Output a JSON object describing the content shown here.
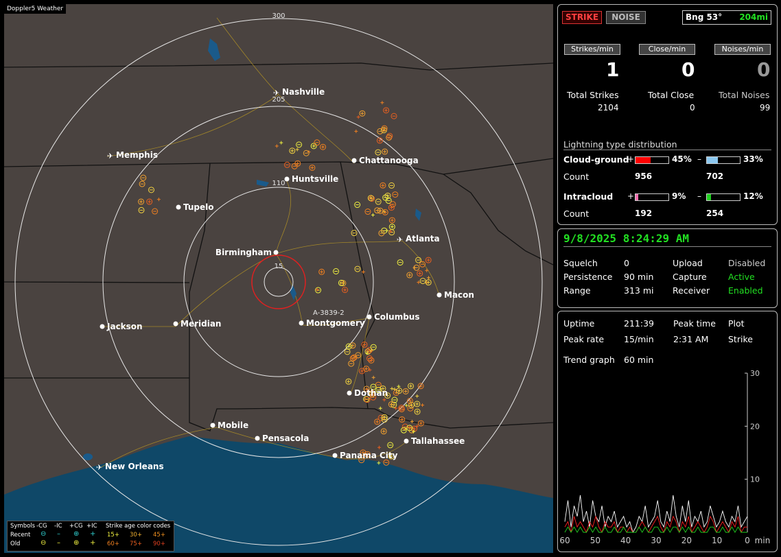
{
  "app_title": "Doppler5 Weather",
  "map": {
    "range_labels": [
      "300",
      "205",
      "110",
      "15"
    ],
    "cities": [
      "Nashville",
      "Memphis",
      "Chattanooga",
      "Huntsville",
      "Tupelo",
      "Atlanta",
      "Birmingham",
      "Macon",
      "Jackson",
      "Meridian",
      "Montgomery",
      "Columbus",
      "Dothan",
      "Mobile",
      "Pensacola",
      "Tallahassee",
      "Panama City",
      "New Orleans"
    ],
    "highway_label": "A-3839-2",
    "legend": {
      "row_titles": [
        "Symbols",
        "Recent",
        "Old"
      ],
      "type_cols": [
        "-CG",
        "-IC",
        "+CG",
        "+IC"
      ],
      "age_title": "Strike age color codes",
      "recent_ages": [
        "15+",
        "30+",
        "45+"
      ],
      "old_ages": [
        "60+",
        "75+",
        "90+"
      ]
    }
  },
  "top_buttons": {
    "strike": "STRIKE",
    "noise": "NOISE"
  },
  "bearing": {
    "label": "Bng 53°",
    "distance": "204mi"
  },
  "rates": {
    "headers": [
      "Strikes/min",
      "Close/min",
      "Noises/min"
    ],
    "values": [
      "1",
      "0",
      "0"
    ]
  },
  "totals": {
    "labels": [
      "Total Strikes",
      "Total Close",
      "Total Noises"
    ],
    "values": [
      "2104",
      "0",
      "99"
    ]
  },
  "distribution": {
    "title": "Lightning type distribution",
    "cg_label": "Cloud-ground",
    "ic_label": "Intracloud",
    "count_label": "Count",
    "cg_pos": {
      "sign": "+",
      "percent": "45%",
      "count": "956",
      "fraction": 0.45,
      "color": "#ff0000"
    },
    "cg_neg": {
      "sign": "–",
      "percent": "33%",
      "count": "702",
      "fraction": 0.33,
      "color": "#8cc8f0"
    },
    "ic_pos": {
      "sign": "+",
      "percent": "9%",
      "count": "192",
      "fraction": 0.09,
      "color": "#f070b0"
    },
    "ic_neg": {
      "sign": "–",
      "percent": "12%",
      "count": "254",
      "fraction": 0.12,
      "color": "#20d020"
    }
  },
  "datetime": "9/8/2025 8:24:29 AM",
  "settings": {
    "squelch_label": "Squelch",
    "squelch_value": "0",
    "persistence_label": "Persistence",
    "persistence_value": "90 min",
    "range_label": "Range",
    "range_value": "313 mi",
    "upload_label": "Upload",
    "upload_value": "Disabled",
    "capture_label": "Capture",
    "capture_value": "Active",
    "receiver_label": "Receiver",
    "receiver_value": "Enabled"
  },
  "stats": {
    "uptime_label": "Uptime",
    "uptime_value": "211:39",
    "peak_time_label": "Peak time",
    "plot_label": "Plot",
    "peak_rate_label": "Peak rate",
    "peak_rate_value": "15/min",
    "peak_time_value": "2:31 AM",
    "plot_value": "Strike",
    "trend_label": "Trend graph",
    "trend_value": "60 min"
  },
  "chart_data": {
    "type": "line",
    "x_ticks": [
      "60",
      "50",
      "40",
      "30",
      "20",
      "10",
      "0",
      "min"
    ],
    "y_ticks": [
      "30",
      "20",
      "10"
    ],
    "xlim": [
      60,
      0
    ],
    "ylim": [
      0,
      30
    ],
    "series": [
      {
        "color": "#ffffff",
        "values": [
          2,
          6,
          1,
          5,
          3,
          7,
          2,
          4,
          1,
          6,
          3,
          2,
          5,
          1,
          3,
          2,
          4,
          1,
          2,
          3,
          1,
          2,
          0,
          1,
          3,
          2,
          5,
          1,
          2,
          3,
          6,
          2,
          1,
          4,
          2,
          7,
          3,
          1,
          5,
          2,
          6,
          1,
          3,
          2,
          4,
          1,
          2,
          5,
          3,
          1,
          2,
          4,
          2,
          1,
          3,
          2,
          5,
          1,
          2,
          3
        ]
      },
      {
        "color": "#ff2020",
        "values": [
          1,
          2,
          0,
          3,
          1,
          2,
          1,
          0,
          2,
          1,
          3,
          1,
          0,
          2,
          1,
          1,
          2,
          0,
          1,
          1,
          0,
          1,
          0,
          0,
          1,
          2,
          1,
          0,
          1,
          2,
          3,
          1,
          0,
          2,
          1,
          3,
          2,
          0,
          2,
          1,
          3,
          0,
          1,
          2,
          1,
          0,
          1,
          3,
          2,
          0,
          1,
          2,
          1,
          0,
          2,
          1,
          3,
          0,
          1,
          1
        ]
      },
      {
        "color": "#20d020",
        "values": [
          0,
          1,
          0,
          1,
          0,
          1,
          0,
          0,
          1,
          0,
          1,
          0,
          0,
          1,
          0,
          0,
          1,
          0,
          0,
          1,
          0,
          0,
          0,
          0,
          1,
          0,
          1,
          0,
          0,
          1,
          1,
          0,
          0,
          1,
          0,
          1,
          1,
          0,
          1,
          0,
          1,
          0,
          0,
          1,
          0,
          0,
          0,
          1,
          1,
          0,
          0,
          1,
          0,
          0,
          1,
          0,
          1,
          0,
          0,
          0
        ]
      }
    ]
  }
}
